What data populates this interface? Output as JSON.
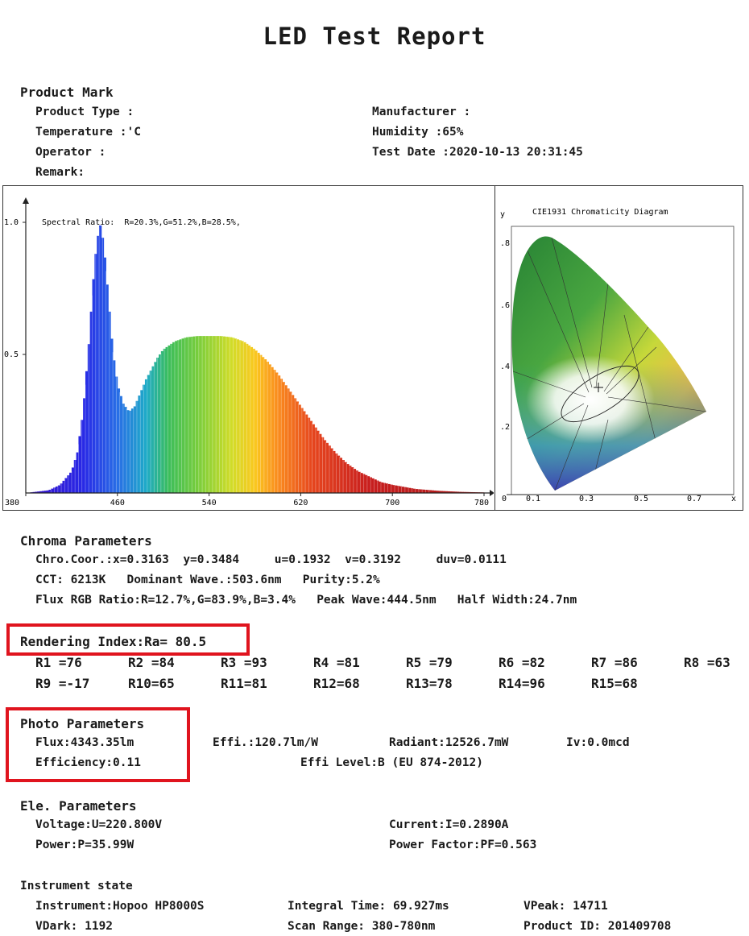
{
  "title": "LED Test Report",
  "product_mark": {
    "heading": "Product Mark",
    "product_type": "Product Type :",
    "manufacturer": "Manufacturer :",
    "temperature": "Temperature :'C",
    "humidity": "Humidity :65%",
    "operator": "Operator :",
    "test_date": "Test Date :2020-10-13 20:31:45",
    "remark": "Remark:"
  },
  "spectrum": {
    "ratio_text": "Spectral Ratio:  R=20.3%,G=51.2%,B=28.5%,",
    "y_ticks": [
      "1.0",
      "0.5"
    ],
    "x_ticks": [
      "380",
      "460",
      "540",
      "620",
      "700",
      "780"
    ]
  },
  "chart_data": {
    "type": "area",
    "xlabel": "",
    "ylabel": "",
    "xlim": [
      380,
      780
    ],
    "ylim": [
      0,
      1.1
    ],
    "x": [
      380,
      400,
      410,
      420,
      425,
      430,
      435,
      440,
      444.5,
      448,
      452,
      456,
      460,
      465,
      470,
      475,
      480,
      485,
      490,
      495,
      500,
      510,
      520,
      530,
      540,
      550,
      560,
      570,
      580,
      590,
      600,
      610,
      620,
      630,
      640,
      650,
      660,
      670,
      680,
      690,
      700,
      720,
      740,
      760,
      780
    ],
    "series": [
      {
        "values": [
          0,
          0.01,
          0.03,
          0.08,
          0.15,
          0.3,
          0.55,
          0.85,
          1.0,
          0.92,
          0.72,
          0.52,
          0.4,
          0.33,
          0.3,
          0.32,
          0.37,
          0.42,
          0.46,
          0.5,
          0.53,
          0.56,
          0.575,
          0.58,
          0.58,
          0.58,
          0.575,
          0.56,
          0.53,
          0.49,
          0.44,
          0.38,
          0.32,
          0.26,
          0.2,
          0.15,
          0.11,
          0.08,
          0.06,
          0.04,
          0.03,
          0.015,
          0.008,
          0.004,
          0.002
        ]
      }
    ]
  },
  "cie": {
    "title": "CIE1931 Chromaticity Diagram",
    "y_label": "y",
    "x_label": "x",
    "y_ticks": [
      ".8",
      ".6",
      ".4",
      ".2"
    ],
    "x_ticks": [
      "0",
      "0.1",
      "0.3",
      "0.5",
      "0.7"
    ],
    "point": {
      "x": 0.3163,
      "y": 0.3484
    }
  },
  "chroma": {
    "heading": "Chroma Parameters",
    "line1": "Chro.Coor.:x=0.3163  y=0.3484     u=0.1932  v=0.3192     duv=0.0111",
    "line2": "CCT: 6213K   Dominant Wave.:503.6nm   Purity:5.2%",
    "line3": "Flux RGB Ratio:R=12.7%,G=83.9%,B=3.4%   Peak Wave:444.5nm   Half Width:24.7nm"
  },
  "rendering": {
    "heading": "Rendering Index:Ra= 80.5",
    "row1": [
      "R1 =76",
      "R2 =84",
      "R3 =93",
      "R4 =81",
      "R5 =79",
      "R6 =82",
      "R7 =86",
      "R8 =63"
    ],
    "row2": [
      "R9 =-17",
      "R10=65",
      "R11=81",
      "R12=68",
      "R13=78",
      "R14=96",
      "R15=68"
    ]
  },
  "photo": {
    "heading": "Photo Parameters",
    "flux": "Flux:4343.35lm",
    "effi": "Effi.:120.7lm/W",
    "radiant": "Radiant:12526.7mW",
    "iv": "Iv:0.0mcd",
    "efficiency": "Efficiency:0.11",
    "effi_level": "Effi Level:B (EU 874-2012)"
  },
  "ele": {
    "heading": "Ele. Parameters",
    "voltage": "Voltage:U=220.800V",
    "current": "Current:I=0.2890A",
    "power": "Power:P=35.99W",
    "pf": "Power Factor:PF=0.563"
  },
  "instrument": {
    "heading": "Instrument state",
    "instrument": "Instrument:Hopoo HP8000S",
    "integral": "Integral Time: 69.927ms",
    "vpeak": "VPeak: 14711",
    "vdark": "VDark: 1192",
    "scan": "Scan Range: 380-780nm",
    "product_id": "Product ID: 201409708"
  },
  "colors": {
    "highlight": "#e0141e"
  }
}
